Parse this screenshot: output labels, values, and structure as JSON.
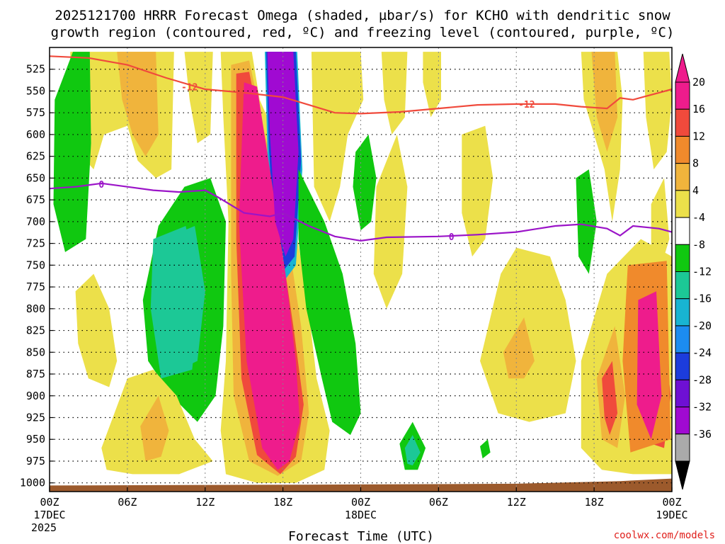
{
  "chart_data": {
    "type": "heatmap",
    "title_line1": "2025121700 HRRR Forecast Omega (shaded, µbar/s) for KCHO with dendritic snow",
    "title_line2": "growth region (contoured, red, ºC) and freezing level (contoured, purple, ºC)",
    "xlabel": "Forecast Time (UTC)",
    "credit": "coolwx.com/models",
    "x_hours": [
      0,
      48
    ],
    "y_range_hPa": [
      1010,
      500
    ],
    "x_ticks": [
      {
        "hour": 0,
        "label": "00Z",
        "sub1": "17DEC",
        "sub2": "2025"
      },
      {
        "hour": 6,
        "label": "06Z",
        "sub1": "",
        "sub2": ""
      },
      {
        "hour": 12,
        "label": "12Z",
        "sub1": "",
        "sub2": ""
      },
      {
        "hour": 18,
        "label": "18Z",
        "sub1": "",
        "sub2": ""
      },
      {
        "hour": 24,
        "label": "00Z",
        "sub1": "18DEC",
        "sub2": ""
      },
      {
        "hour": 30,
        "label": "06Z",
        "sub1": "",
        "sub2": ""
      },
      {
        "hour": 36,
        "label": "12Z",
        "sub1": "",
        "sub2": ""
      },
      {
        "hour": 42,
        "label": "18Z",
        "sub1": "",
        "sub2": ""
      },
      {
        "hour": 48,
        "label": "00Z",
        "sub1": "19DEC",
        "sub2": ""
      }
    ],
    "y_ticks": [
      1000,
      975,
      950,
      925,
      900,
      875,
      850,
      825,
      800,
      775,
      750,
      725,
      700,
      675,
      650,
      625,
      600,
      575,
      550,
      525
    ],
    "colorbar": {
      "labels": [
        "20",
        "16",
        "12",
        "8",
        "4",
        "-4",
        "-8",
        "-12",
        "-16",
        "-20",
        "-24",
        "-28",
        "-32",
        "-36"
      ],
      "bins": [
        {
          "min": 20,
          "max": 24,
          "color": "#ee1c8c"
        },
        {
          "min": 16,
          "max": 20,
          "color": "#f04a3c"
        },
        {
          "min": 12,
          "max": 16,
          "color": "#f08a2c"
        },
        {
          "min": 8,
          "max": 12,
          "color": "#f0b43c"
        },
        {
          "min": 4,
          "max": 8,
          "color": "#ece04a"
        },
        {
          "min": -4,
          "max": 4,
          "color": "#ffffff"
        },
        {
          "min": -8,
          "max": -4,
          "color": "#10c810"
        },
        {
          "min": -12,
          "max": -8,
          "color": "#1cc896"
        },
        {
          "min": -16,
          "max": -12,
          "color": "#18b4d2"
        },
        {
          "min": -20,
          "max": -16,
          "color": "#1c8cf0"
        },
        {
          "min": -24,
          "max": -20,
          "color": "#1c3cdc"
        },
        {
          "min": -28,
          "max": -24,
          "color": "#6e10d4"
        },
        {
          "min": -32,
          "max": -28,
          "color": "#a00ad2"
        },
        {
          "min": -36,
          "max": -32,
          "color": "#aaaaaa"
        }
      ],
      "top_arrow_color": "#ee1c8c",
      "bottom_arrow_color": "#000000"
    },
    "omega_features": [
      {
        "name": "strong-rise-band",
        "value": 24,
        "color": "#ee1c8c",
        "hour_pressure": [
          [
            15.0,
            540
          ],
          [
            16.0,
            545
          ],
          [
            17.2,
            660
          ],
          [
            18.2,
            760
          ],
          [
            19.0,
            860
          ],
          [
            19.3,
            930
          ],
          [
            18.5,
            975
          ],
          [
            17.6,
            985
          ],
          [
            16.4,
            960
          ],
          [
            15.2,
            860
          ],
          [
            14.6,
            700
          ]
        ]
      },
      {
        "name": "sinking-core",
        "value": -30,
        "color": "#a00ad2",
        "hour_pressure": [
          [
            16.8,
            505
          ],
          [
            18.8,
            505
          ],
          [
            19.2,
            620
          ],
          [
            18.8,
            720
          ],
          [
            18.2,
            740
          ],
          [
            17.4,
            700
          ],
          [
            17.0,
            600
          ]
        ]
      },
      {
        "name": "west-green-column",
        "value": -6,
        "color": "#10c810",
        "hour_pressure": [
          [
            0.4,
            560
          ],
          [
            1.8,
            505
          ],
          [
            3.1,
            505
          ],
          [
            3.2,
            610
          ],
          [
            2.8,
            720
          ],
          [
            1.2,
            735
          ],
          [
            0.3,
            680
          ]
        ]
      },
      {
        "name": "west-teal-patch",
        "value": -10,
        "color": "#1cc896",
        "hour_pressure": [
          [
            8.0,
            720
          ],
          [
            10.5,
            705
          ],
          [
            11.6,
            780
          ],
          [
            11.0,
            870
          ],
          [
            8.6,
            880
          ],
          [
            7.8,
            800
          ]
        ]
      },
      {
        "name": "east-orange-cell",
        "value": 14,
        "color": "#f08a2c",
        "hour_pressure": [
          [
            44.6,
            750
          ],
          [
            47.6,
            745
          ],
          [
            47.9,
            950
          ],
          [
            44.8,
            965
          ],
          [
            44.2,
            860
          ]
        ]
      },
      {
        "name": "east-pink-core",
        "value": 22,
        "color": "#ee1c8c",
        "hour_pressure": [
          [
            45.4,
            790
          ],
          [
            46.8,
            780
          ],
          [
            47.2,
            900
          ],
          [
            46.4,
            950
          ],
          [
            45.3,
            910
          ]
        ]
      }
    ],
    "dgz_contour": {
      "label": "-12",
      "color": "#f04a3c",
      "points": [
        [
          0,
          510
        ],
        [
          3,
          512
        ],
        [
          6,
          520
        ],
        [
          9,
          535
        ],
        [
          12,
          548
        ],
        [
          15,
          552
        ],
        [
          18,
          557
        ],
        [
          20,
          566
        ],
        [
          22,
          575
        ],
        [
          24,
          576
        ],
        [
          27,
          574
        ],
        [
          30,
          570
        ],
        [
          33,
          566
        ],
        [
          36,
          565
        ],
        [
          39,
          565
        ],
        [
          41,
          568
        ],
        [
          43,
          570
        ],
        [
          44,
          558
        ],
        [
          45,
          560
        ],
        [
          46,
          556
        ],
        [
          48,
          548
        ]
      ]
    },
    "freezing_level_contour": {
      "label": "0",
      "color": "#9b14c8",
      "points": [
        [
          0,
          662
        ],
        [
          2,
          660
        ],
        [
          4,
          656
        ],
        [
          6,
          660
        ],
        [
          8,
          664
        ],
        [
          10,
          666
        ],
        [
          12,
          664
        ],
        [
          13,
          672
        ],
        [
          15,
          690
        ],
        [
          17,
          694
        ],
        [
          18,
          690
        ],
        [
          20,
          705
        ],
        [
          22,
          717
        ],
        [
          24,
          722
        ],
        [
          26,
          718
        ],
        [
          30,
          717
        ],
        [
          33,
          715
        ],
        [
          36,
          712
        ],
        [
          39,
          705
        ],
        [
          41,
          703
        ],
        [
          43,
          708
        ],
        [
          44,
          716
        ],
        [
          45,
          705
        ],
        [
          47,
          708
        ],
        [
          48,
          712
        ]
      ]
    }
  }
}
